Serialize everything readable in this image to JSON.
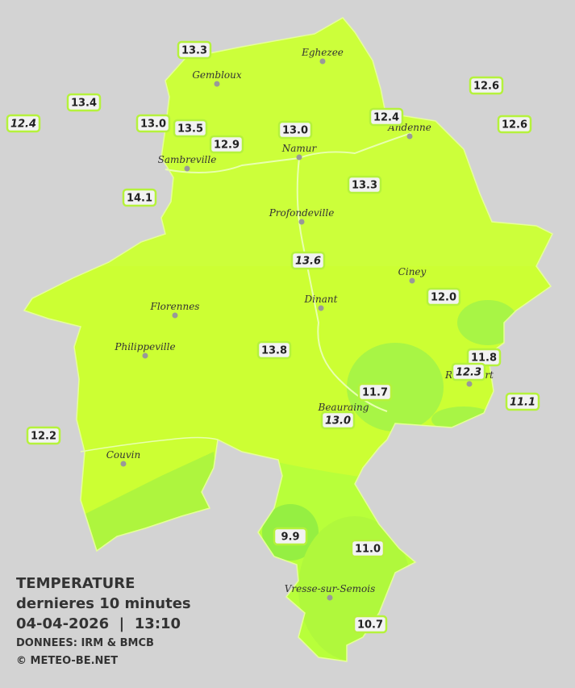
{
  "towns": [
    {
      "name": "Eghezee"
    },
    {
      "name": "Gembloux"
    },
    {
      "name": "Andenne"
    },
    {
      "name": "Namur"
    },
    {
      "name": "Sambreville"
    },
    {
      "name": "Profondeville"
    },
    {
      "name": "Ciney"
    },
    {
      "name": "Dinant"
    },
    {
      "name": "Florennes"
    },
    {
      "name": "Philippeville"
    },
    {
      "name": "Beauraing"
    },
    {
      "name": "Rochefort"
    },
    {
      "name": "Couvin"
    },
    {
      "name": "Vresse-sur-Semois"
    }
  ],
  "stations": [
    {
      "value": "13.3"
    },
    {
      "value": "13.4"
    },
    {
      "value": "12.4",
      "italic": true
    },
    {
      "value": "13.0"
    },
    {
      "value": "13.5"
    },
    {
      "value": "12.9"
    },
    {
      "value": "13.0"
    },
    {
      "value": "12.4"
    },
    {
      "value": "12.6"
    },
    {
      "value": "12.6"
    },
    {
      "value": "14.1"
    },
    {
      "value": "13.3"
    },
    {
      "value": "13.6",
      "italic": true
    },
    {
      "value": "12.0"
    },
    {
      "value": "13.8"
    },
    {
      "value": "11.8"
    },
    {
      "value": "12.3",
      "italic": true
    },
    {
      "value": "11.7"
    },
    {
      "value": "11.1",
      "italic": true
    },
    {
      "value": "13.0",
      "italic": true
    },
    {
      "value": "12.2"
    },
    {
      "value": "9.9"
    },
    {
      "value": "11.0"
    },
    {
      "value": "10.7"
    }
  ],
  "legend": {
    "title": "TEMPERATURE",
    "subtitle": "dernieres 10 minutes",
    "datetime": "04-04-2026  |  13:10",
    "source": "DONNEES: IRM & BMCB",
    "credit": "© METEO-BE.NET"
  }
}
